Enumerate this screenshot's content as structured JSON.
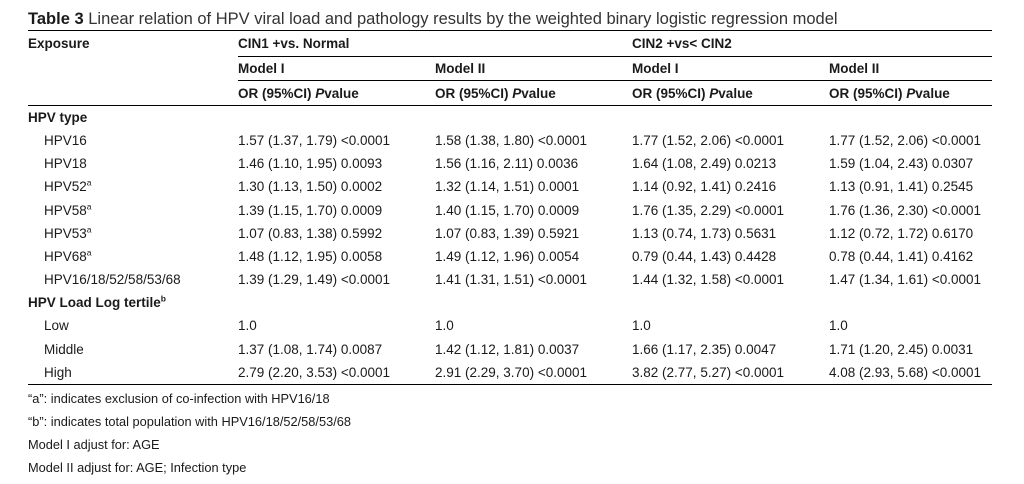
{
  "caption": {
    "label": "Table 3",
    "text": "Linear relation of HPV viral load and pathology results by the weighted binary logistic regression model"
  },
  "header": {
    "exposure": "Exposure",
    "groups": [
      "CIN1 +vs. Normal",
      "CIN2 +vs< CIN2"
    ],
    "models": [
      "Model I",
      "Model II",
      "Model I",
      "Model II"
    ],
    "stat_prefix": "OR (95%CI) ",
    "stat_p": "P",
    "stat_suffix": "value"
  },
  "sections": [
    {
      "title": "HPV type",
      "title_sup": "",
      "rows": [
        {
          "label": "HPV16",
          "sup": "",
          "values": [
            "1.57 (1.37, 1.79) <0.0001",
            "1.58 (1.38, 1.80) <0.0001",
            "1.77 (1.52, 2.06) <0.0001",
            "1.77 (1.52, 2.06) <0.0001"
          ]
        },
        {
          "label": "HPV18",
          "sup": "",
          "values": [
            "1.46 (1.10, 1.95) 0.0093",
            "1.56 (1.16, 2.11) 0.0036",
            "1.64 (1.08, 2.49) 0.0213",
            "1.59 (1.04, 2.43) 0.0307"
          ]
        },
        {
          "label": "HPV52",
          "sup": "a",
          "values": [
            "1.30 (1.13, 1.50) 0.0002",
            "1.32 (1.14, 1.51) 0.0001",
            "1.14 (0.92, 1.41) 0.2416",
            "1.13 (0.91, 1.41) 0.2545"
          ]
        },
        {
          "label": "HPV58",
          "sup": "a",
          "values": [
            "1.39 (1.15, 1.70) 0.0009",
            "1.40 (1.15, 1.70) 0.0009",
            "1.76 (1.35, 2.29) <0.0001",
            "1.76 (1.36, 2.30) <0.0001"
          ]
        },
        {
          "label": "HPV53",
          "sup": "a",
          "values": [
            "1.07 (0.83, 1.38) 0.5992",
            "1.07 (0.83, 1.39) 0.5921",
            "1.13 (0.74, 1.73) 0.5631",
            "1.12 (0.72, 1.72) 0.6170"
          ]
        },
        {
          "label": "HPV68",
          "sup": "a",
          "values": [
            "1.48 (1.12, 1.95) 0.0058",
            "1.49 (1.12, 1.96) 0.0054",
            "0.79 (0.44, 1.43) 0.4428",
            "0.78 (0.44, 1.41) 0.4162"
          ]
        },
        {
          "label": "HPV16/18/52/58/53/68",
          "sup": "",
          "values": [
            "1.39 (1.29, 1.49) <0.0001",
            "1.41 (1.31, 1.51) <0.0001",
            "1.44 (1.32, 1.58) <0.0001",
            "1.47 (1.34, 1.61) <0.0001"
          ]
        }
      ]
    },
    {
      "title": "HPV Load Log tertile",
      "title_sup": "b",
      "rows": [
        {
          "label": "Low",
          "sup": "",
          "values": [
            "1.0",
            "1.0",
            "1.0",
            "1.0"
          ]
        },
        {
          "label": "Middle",
          "sup": "",
          "values": [
            "1.37 (1.08, 1.74) 0.0087",
            "1.42 (1.12, 1.81) 0.0037",
            "1.66 (1.17, 2.35) 0.0047",
            "1.71 (1.20, 2.45) 0.0031"
          ]
        },
        {
          "label": "High",
          "sup": "",
          "values": [
            "2.79 (2.20, 3.53) <0.0001",
            "2.91 (2.29, 3.70) <0.0001",
            "3.82 (2.77, 5.27) <0.0001",
            "4.08 (2.93, 5.68) <0.0001"
          ]
        }
      ]
    }
  ],
  "notes": [
    "“a”: indicates exclusion of co-infection with HPV16/18",
    "“b”: indicates total population with HPV16/18/52/58/53/68",
    "Model I adjust for: AGE",
    "Model II adjust for: AGE; Infection type"
  ]
}
